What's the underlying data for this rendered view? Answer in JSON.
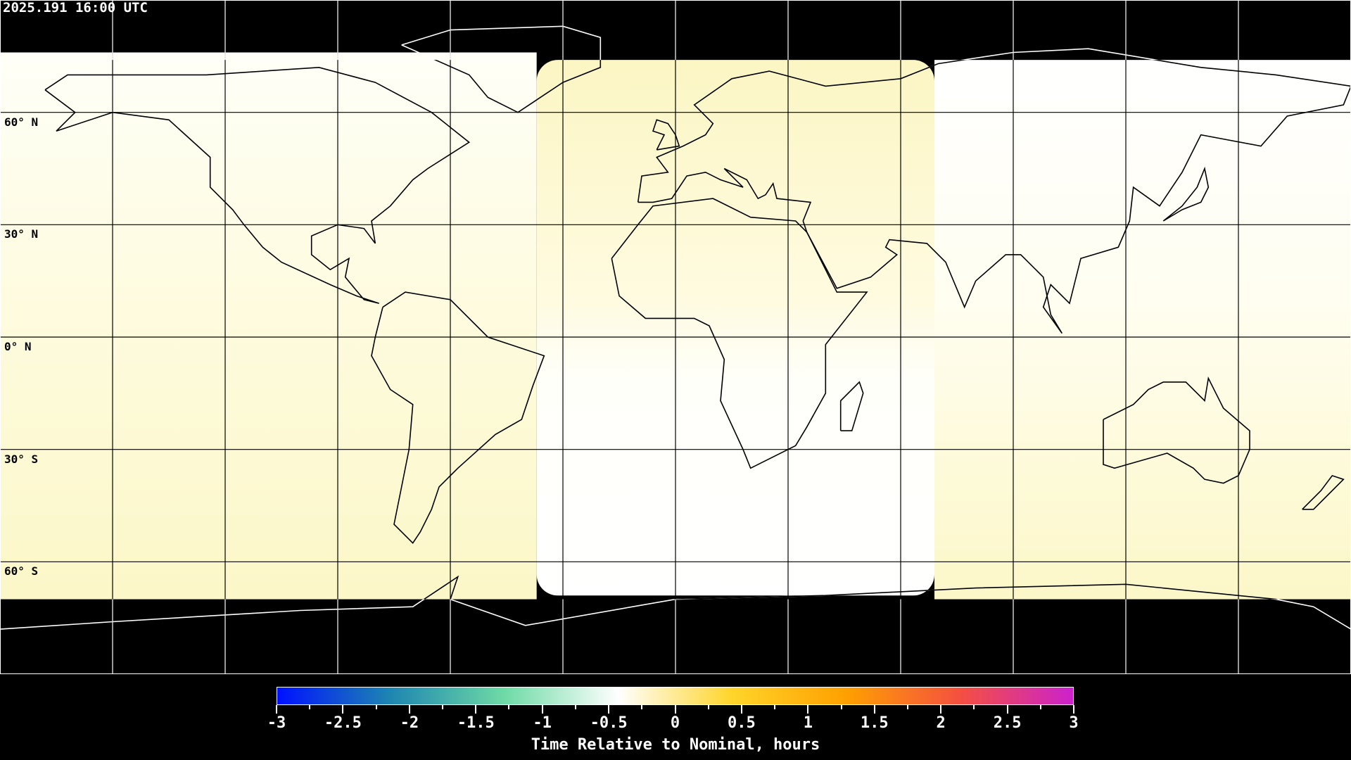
{
  "timestamp": "2025.191 16:00 UTC",
  "map": {
    "projection": "equirectangular",
    "grid_spacing_deg": 30,
    "lat_labels": [
      "60° N",
      "30° N",
      "0° N",
      "30° S",
      "60° S"
    ],
    "colors": {
      "night": "#000000",
      "lit_yellow": "#fdf9cf",
      "lit_white": "#fffff6",
      "grid": "#000000",
      "coast_day": "#000000",
      "coast_night": "#ffffff"
    }
  },
  "colorbar": {
    "title": "Time Relative to Nominal, hours",
    "min": -3,
    "max": 3,
    "tick_labels": [
      "-3",
      "-2.5",
      "-2",
      "-1.5",
      "-1",
      "-0.5",
      "0",
      "0.5",
      "1",
      "1.5",
      "2",
      "2.5",
      "3"
    ],
    "stops": [
      "#0010ff",
      "#1f86b0",
      "#6fdaa6",
      "#ffffff",
      "#ffd52a",
      "#ffa000",
      "#f55040",
      "#cc22cc"
    ]
  }
}
